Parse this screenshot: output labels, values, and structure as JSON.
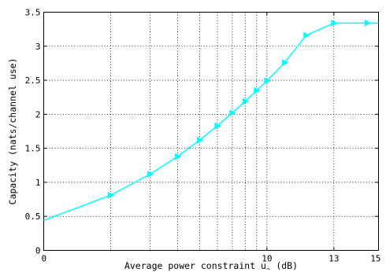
{
  "chart_data": {
    "type": "line",
    "xlabel": "Average power constraint u",
    "xlabel_subscript": "~",
    "xlabel_unit": "(dB)",
    "ylabel": "Capacity (nats/channel use)",
    "xlim": [
      0,
      15
    ],
    "ylim": [
      0,
      3.5
    ],
    "x_ticks": [
      0,
      10,
      13,
      15
    ],
    "y_ticks": [
      0,
      0.5,
      1,
      1.5,
      2,
      2.5,
      3,
      3.5
    ],
    "x_tick_labels": [
      "0",
      "10",
      "13",
      "15"
    ],
    "y_tick_labels": [
      "0",
      "0.5",
      "1",
      "1.5",
      "2",
      "2.5",
      "3",
      "3.5"
    ],
    "x_grid_lines": [
      3,
      4.77,
      6,
      6.99,
      7.78,
      8.45,
      9.03,
      9.54,
      10,
      13
    ],
    "grid": true,
    "series": [
      {
        "color": "#00ffff",
        "marker": "triangle-right",
        "x": [
          0,
          3,
          4.77,
          6,
          6.99,
          7.78,
          8.45,
          9.03,
          9.54,
          10,
          10.8,
          11.76,
          13,
          14.5,
          15
        ],
        "y": [
          0.44,
          0.81,
          1.12,
          1.38,
          1.62,
          1.83,
          2.02,
          2.19,
          2.35,
          2.49,
          2.76,
          3.16,
          3.34,
          3.34,
          3.34
        ]
      }
    ]
  }
}
